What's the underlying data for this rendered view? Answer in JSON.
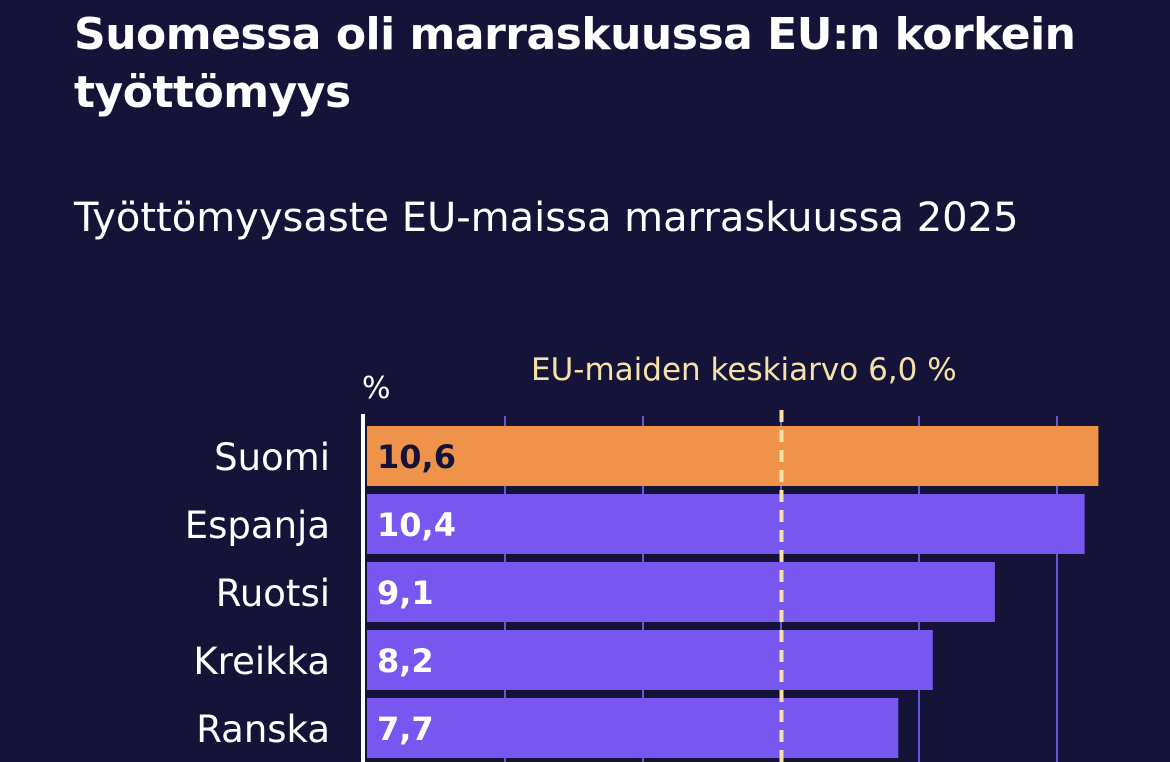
{
  "title": "Suomessa oli marraskuussa EU:n korkein työttömyys",
  "subtitle": "Työttömyysaste EU-maissa marraskuussa 2025",
  "colors": {
    "background": "#161339",
    "highlight_bar": "#F0934A",
    "bar": "#7757EF",
    "average_line": "#F5E2A8",
    "gridline": "#6B55D9",
    "axis": "#FFFFFF",
    "text": "#FFFFFF"
  },
  "chart_data": {
    "type": "bar",
    "orientation": "horizontal",
    "unit_label": "%",
    "categories": [
      "Suomi",
      "Espanja",
      "Ruotsi",
      "Kreikka",
      "Ranska"
    ],
    "values": [
      10.6,
      10.4,
      9.1,
      8.2,
      7.7
    ],
    "value_labels": [
      "10,6",
      "10,4",
      "9,1",
      "8,2",
      "7,7"
    ],
    "highlight_category": "Suomi",
    "xlim": [
      0,
      11
    ],
    "gridlines": [
      2,
      4,
      6,
      8,
      10
    ],
    "reference_line": {
      "value": 6.0,
      "label": "EU-maiden keskiarvo 6,0 %"
    },
    "grid": true,
    "legend": "none"
  }
}
